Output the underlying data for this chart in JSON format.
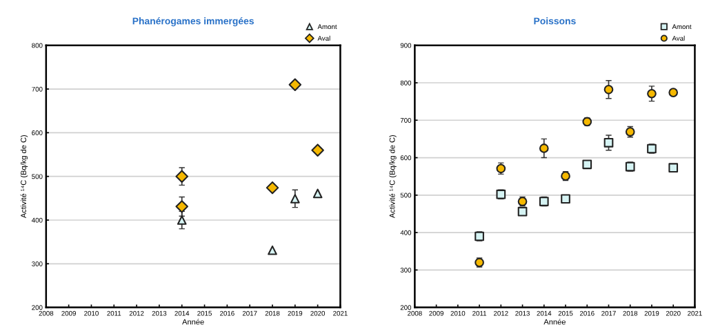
{
  "chart_data": [
    {
      "type": "scatter",
      "title": "Phanérogames immergées",
      "xlabel": "Année",
      "ylabel": "Activité ¹⁴C (Bq/kg de C)",
      "xlim": [
        2008,
        2021
      ],
      "xticks": [
        2008,
        2009,
        2010,
        2011,
        2012,
        2013,
        2014,
        2015,
        2016,
        2017,
        2018,
        2019,
        2020,
        2021
      ],
      "ylim": [
        200,
        800
      ],
      "yticks": [
        200,
        300,
        400,
        500,
        600,
        700,
        800
      ],
      "grid": "y",
      "legend": "top right",
      "series": [
        {
          "name": "Amont",
          "color": "#d6f4f4",
          "marker": "triangle",
          "x": [
            2014,
            2018,
            2019,
            2020
          ],
          "values": [
            400,
            331,
            449,
            461
          ],
          "errors": [
            20,
            null,
            20,
            null
          ]
        },
        {
          "name": "Aval",
          "color": "#f5b800",
          "marker": "diamond",
          "x": [
            2014,
            2014,
            2018,
            2019,
            2020
          ],
          "values": [
            500,
            431,
            474,
            710,
            560
          ],
          "errors": [
            20,
            22,
            null,
            null,
            null
          ]
        }
      ]
    },
    {
      "type": "scatter",
      "title": "Poissons",
      "xlabel": "Année",
      "ylabel": "Activité ¹⁴C (Bq/kg de C)",
      "xlim": [
        2008,
        2021
      ],
      "xticks": [
        2008,
        2009,
        2010,
        2011,
        2012,
        2013,
        2014,
        2015,
        2016,
        2017,
        2018,
        2019,
        2020,
        2021
      ],
      "ylim": [
        200,
        900
      ],
      "yticks": [
        200,
        300,
        400,
        500,
        600,
        700,
        800,
        900
      ],
      "grid": "y",
      "legend": "top right",
      "series": [
        {
          "name": "Amont",
          "color": "#d6f4f4",
          "marker": "square",
          "x": [
            2011,
            2012,
            2013,
            2014,
            2015,
            2016,
            2017,
            2018,
            2019,
            2020
          ],
          "values": [
            390,
            502,
            456,
            483,
            490,
            582,
            640,
            576,
            624,
            573
          ],
          "errors": [
            12,
            12,
            10,
            12,
            8,
            8,
            20,
            12,
            12,
            null
          ]
        },
        {
          "name": "Aval",
          "color": "#f5b800",
          "marker": "circle",
          "x": [
            2011,
            2012,
            2013,
            2014,
            2015,
            2016,
            2017,
            2018,
            2019,
            2020
          ],
          "values": [
            320,
            571,
            483,
            625,
            551,
            696,
            782,
            669,
            771,
            774
          ],
          "errors": [
            12,
            15,
            12,
            25,
            12,
            10,
            24,
            14,
            20,
            null
          ]
        }
      ]
    }
  ]
}
